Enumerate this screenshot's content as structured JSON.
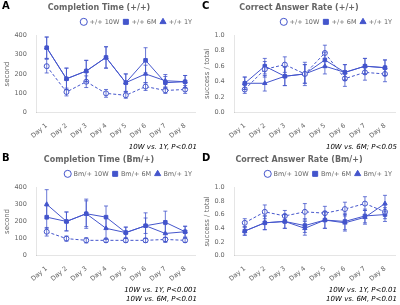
{
  "chart_data": [
    {
      "type": "line",
      "panel_label": "A",
      "title": "Completion Time (+/+)",
      "y_label": "second",
      "categories": [
        "Day 1",
        "Day 2",
        "Day 3",
        "Day 4",
        "Day 5",
        "Day 6",
        "Day 7",
        "Day 8"
      ],
      "series": [
        {
          "name": "+/+ 10W",
          "color": "#4455cc",
          "marker": "open_circle",
          "line_style": "dashed",
          "values": [
            240,
            107,
            160,
            100,
            90,
            135,
            115,
            120
          ],
          "errors": [
            35,
            20,
            30,
            20,
            15,
            20,
            15,
            20
          ]
        },
        {
          "name": "+/+ 6M",
          "color": "#4455cc",
          "marker": "square",
          "line_style": "solid",
          "values": [
            335,
            175,
            215,
            285,
            155,
            270,
            155,
            160
          ],
          "errors": [
            55,
            55,
            55,
            55,
            45,
            65,
            32,
            32
          ]
        },
        {
          "name": "+/+ 1Y",
          "color": "#4455cc",
          "marker": "triangle",
          "line_style": "solid",
          "values": [
            335,
            175,
            215,
            285,
            155,
            200,
            165,
            160
          ],
          "errors": [
            55,
            55,
            55,
            55,
            45,
            45,
            32,
            32
          ]
        }
      ],
      "ylim": [
        0,
        400
      ],
      "yticks": [
        0,
        100,
        200,
        300,
        400
      ],
      "annotations": [
        "10W vs. 1Y, P<0.01"
      ],
      "grid": false,
      "legend": "upper right"
    },
    {
      "type": "line",
      "panel_label": "B",
      "title": "Completion Time (Bm/+)",
      "y_label": "second",
      "categories": [
        "Day 1",
        "Day 2",
        "Day 3",
        "Day 4",
        "Day 5",
        "Day 6",
        "Day 7",
        "Day 8"
      ],
      "series": [
        {
          "name": "Bm/+ 10W",
          "color": "#4455cc",
          "marker": "open_circle",
          "line_style": "dashed",
          "values": [
            140,
            100,
            90,
            90,
            90,
            90,
            95,
            90
          ],
          "errors": [
            25,
            15,
            15,
            12,
            12,
            12,
            12,
            12
          ]
        },
        {
          "name": "Bm/+ 6M",
          "color": "#4455cc",
          "marker": "square",
          "line_style": "solid",
          "values": [
            225,
            200,
            245,
            225,
            135,
            175,
            195,
            140
          ],
          "errors": [
            65,
            55,
            75,
            65,
            32,
            45,
            65,
            32
          ]
        },
        {
          "name": "Bm/+ 1Y",
          "color": "#4455cc",
          "marker": "triangle",
          "line_style": "solid",
          "values": [
            300,
            200,
            245,
            160,
            135,
            175,
            130,
            140
          ],
          "errors": [
            85,
            55,
            85,
            65,
            32,
            75,
            52,
            32
          ]
        }
      ],
      "ylim": [
        0,
        400
      ],
      "yticks": [
        0,
        100,
        200,
        300,
        400
      ],
      "annotations": [
        "10W vs. 6M, P<0.01",
        "10W vs. 1Y, P<0.001"
      ],
      "grid": false,
      "legend": "upper right"
    },
    {
      "type": "line",
      "panel_label": "C",
      "title": "Correct Answer Rate (+/+)",
      "y_label": "success / total",
      "categories": [
        "Day 1",
        "Day 2",
        "Day 3",
        "Day 4",
        "Day 5",
        "Day 6",
        "Day 7",
        "Day 8"
      ],
      "series": [
        {
          "name": "+/+ 10W",
          "color": "#4455cc",
          "marker": "open_circle",
          "line_style": "dashed",
          "values": [
            0.3,
            0.56,
            0.62,
            0.5,
            0.77,
            0.44,
            0.52,
            0.5
          ],
          "errors": [
            0.05,
            0.1,
            0.1,
            0.15,
            0.1,
            0.1,
            0.1,
            0.1
          ]
        },
        {
          "name": "+/+ 6M",
          "color": "#4455cc",
          "marker": "square",
          "line_style": "solid",
          "values": [
            0.38,
            0.6,
            0.47,
            0.5,
            0.68,
            0.52,
            0.6,
            0.58
          ],
          "errors": [
            0.08,
            0.1,
            0.12,
            0.12,
            0.1,
            0.1,
            0.1,
            0.1
          ]
        },
        {
          "name": "+/+ 1Y",
          "color": "#4455cc",
          "marker": "triangle",
          "line_style": "solid",
          "values": [
            0.38,
            0.38,
            0.47,
            0.5,
            0.6,
            0.52,
            0.6,
            0.58
          ],
          "errors": [
            0.08,
            0.1,
            0.12,
            0.12,
            0.1,
            0.1,
            0.1,
            0.1
          ]
        }
      ],
      "ylim": [
        0.0,
        1.0
      ],
      "yticks": [
        {
          "value": 0.0,
          "label": "0.0"
        },
        0.2,
        0.4,
        0.6,
        0.8,
        {
          "value": 1.0,
          "label": "1.0"
        }
      ],
      "annotations": [
        "10W vs. 6M; P<0.05"
      ],
      "grid": false,
      "legend": "upper right"
    },
    {
      "type": "line",
      "panel_label": "D",
      "title": "Correct Answer Rate (Bm/+)",
      "y_label": "success / total",
      "categories": [
        "Day 1",
        "Day 2",
        "Day 3",
        "Day 4",
        "Day 5",
        "Day 6",
        "Day 7",
        "Day 8"
      ],
      "series": [
        {
          "name": "Bm/+ 10W",
          "color": "#4455cc",
          "marker": "open_circle",
          "line_style": "dashed",
          "values": [
            0.48,
            0.64,
            0.58,
            0.64,
            0.62,
            0.68,
            0.76,
            0.64
          ],
          "errors": [
            0.06,
            0.1,
            0.08,
            0.12,
            0.1,
            0.1,
            0.1,
            0.1
          ]
        },
        {
          "name": "Bm/+ 6M",
          "color": "#4455cc",
          "marker": "square",
          "line_style": "solid",
          "values": [
            0.36,
            0.48,
            0.5,
            0.44,
            0.52,
            0.5,
            0.58,
            0.6
          ],
          "errors": [
            0.06,
            0.1,
            0.1,
            0.1,
            0.12,
            0.12,
            0.1,
            0.1
          ]
        },
        {
          "name": "Bm/+ 1Y",
          "color": "#4455cc",
          "marker": "triangle",
          "line_style": "solid",
          "values": [
            0.36,
            0.48,
            0.5,
            0.4,
            0.52,
            0.48,
            0.56,
            0.76
          ],
          "errors": [
            0.06,
            0.1,
            0.1,
            0.1,
            0.12,
            0.12,
            0.1,
            0.12
          ]
        }
      ],
      "ylim": [
        0.0,
        1.0
      ],
      "yticks": [
        {
          "value": 0.0,
          "label": "0.0"
        },
        0.2,
        0.4,
        0.6,
        0.8,
        {
          "value": 1.0,
          "label": "1.0"
        }
      ],
      "annotations": [
        "10W vs. 6M, P<0.01",
        "10W vs. 1Y, P<0.01"
      ],
      "grid": false,
      "legend": "upper right"
    }
  ]
}
